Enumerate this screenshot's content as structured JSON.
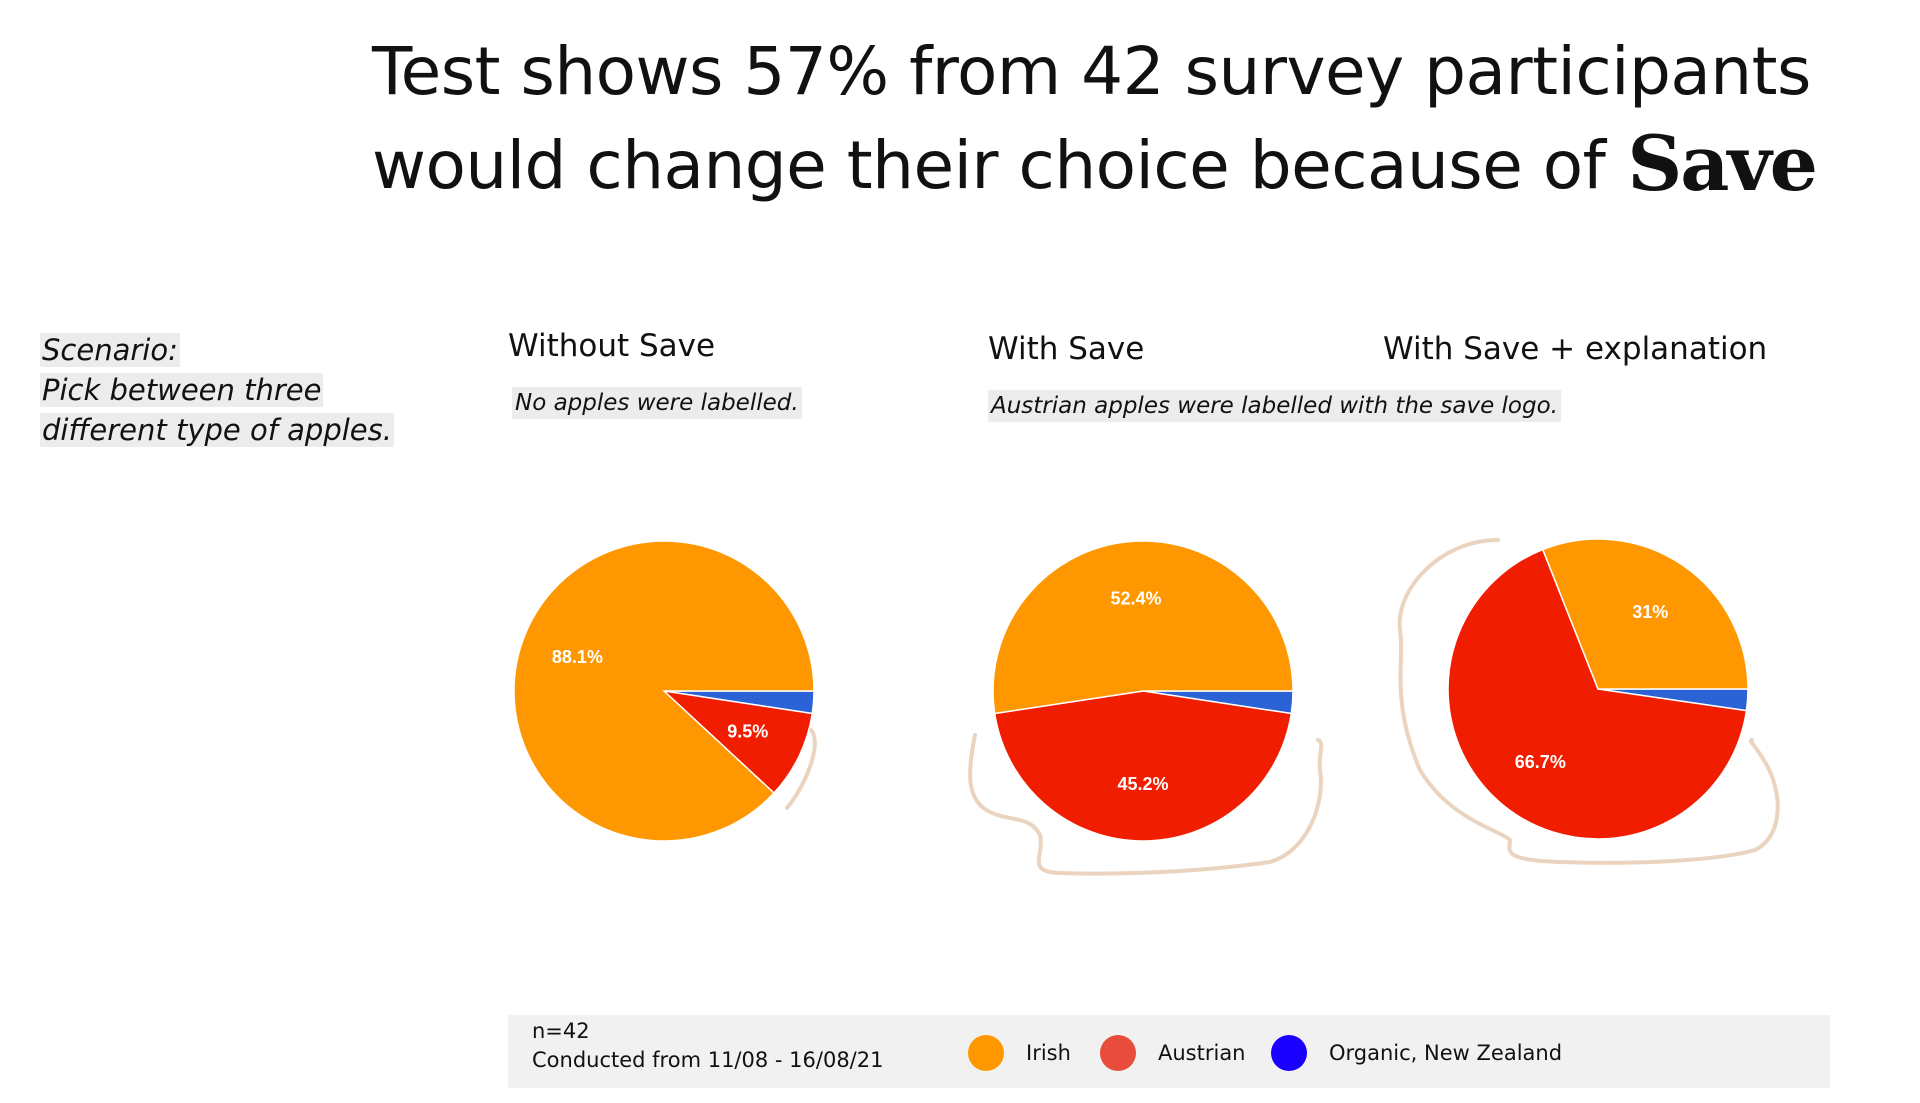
{
  "headline": {
    "text": "Test shows 57% from 42 survey participants would change their choice because of",
    "logo_text": "Save"
  },
  "scenario": {
    "label": "Scenario:",
    "line1": "Pick between three",
    "line2": "different type of apples."
  },
  "charts": [
    {
      "title": "Without Save",
      "note": "No apples were labelled."
    },
    {
      "title": "With Save",
      "note": "Austrian apples were labelled with the save logo."
    },
    {
      "title": "With Save + explanation"
    }
  ],
  "footer": {
    "sample": "n=42",
    "period": "Conducted from 11/08 - 16/08/21"
  },
  "legend": [
    {
      "label": "Irish",
      "color": "#ff9800"
    },
    {
      "label": "Austrian",
      "color": "#e74c3c"
    },
    {
      "label": "Organic, New Zealand",
      "color": "#1a00ff"
    }
  ],
  "colors": {
    "irish": "#ff9800",
    "austrian": "#f01d00",
    "organic": "#2b62d6",
    "highlight_stroke": "#ead4bf"
  },
  "chart_data": [
    {
      "type": "pie",
      "title": "Without Save",
      "categories": [
        "Irish",
        "Austrian",
        "Organic, New Zealand"
      ],
      "values": [
        88.1,
        9.5,
        2.4
      ],
      "labels": [
        "88.1%",
        "9.5%",
        ""
      ]
    },
    {
      "type": "pie",
      "title": "With Save",
      "categories": [
        "Irish",
        "Austrian",
        "Organic, New Zealand"
      ],
      "values": [
        52.4,
        45.2,
        2.4
      ],
      "labels": [
        "52.4%",
        "45.2%",
        ""
      ]
    },
    {
      "type": "pie",
      "title": "With Save + explanation",
      "categories": [
        "Irish",
        "Austrian",
        "Organic, New Zealand"
      ],
      "values": [
        31.0,
        66.7,
        2.3
      ],
      "labels": [
        "31%",
        "66.7%",
        ""
      ]
    }
  ]
}
